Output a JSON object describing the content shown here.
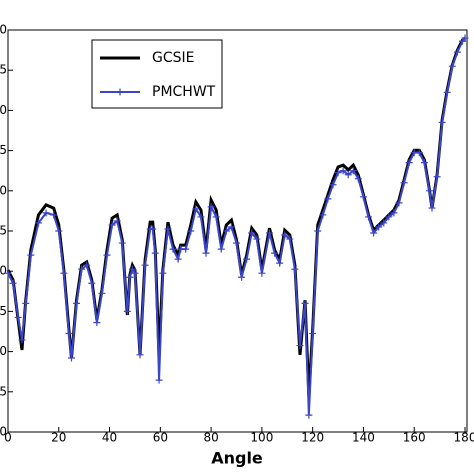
{
  "chart_data": {
    "type": "line",
    "x_label": "Angle",
    "x": [
      0,
      2,
      4,
      5.5,
      7,
      9,
      12,
      15,
      18,
      20,
      22,
      24,
      25,
      27,
      29,
      31,
      33,
      35,
      37,
      39,
      41,
      43,
      45,
      47,
      48,
      49,
      50,
      52,
      54,
      56,
      57,
      58,
      59.5,
      61,
      63,
      65,
      67,
      68,
      70,
      72,
      74,
      76,
      78,
      80,
      82,
      84,
      86,
      88,
      90,
      92,
      94,
      96,
      98,
      100,
      103,
      105,
      107,
      109,
      111,
      113,
      115,
      117,
      118.5,
      120,
      122,
      124,
      126,
      128,
      130,
      132,
      134,
      136,
      138,
      140,
      142,
      144,
      146,
      148,
      150,
      152,
      154,
      156,
      158,
      160,
      162,
      164,
      166,
      167,
      169,
      171,
      173,
      175,
      177,
      179,
      180
    ],
    "series": [
      {
        "name": "GCSIE",
        "color": "#000000",
        "marker": "none",
        "values": [
          4.03,
          3.78,
          2.79,
          2.04,
          3.28,
          4.53,
          5.4,
          5.65,
          5.57,
          5.15,
          4.03,
          2.54,
          1.84,
          3.28,
          4.15,
          4.23,
          3.78,
          2.79,
          3.53,
          4.53,
          5.32,
          5.4,
          4.78,
          2.91,
          3.91,
          4.15,
          4.03,
          1.92,
          4.28,
          5.22,
          5.22,
          4.53,
          1.9,
          4.03,
          5.22,
          4.65,
          4.4,
          4.65,
          4.65,
          5.15,
          5.72,
          5.52,
          4.53,
          5.77,
          5.52,
          4.65,
          5.15,
          5.27,
          4.78,
          3.91,
          4.4,
          5.07,
          4.9,
          4.03,
          5.07,
          4.53,
          4.28,
          5.02,
          4.9,
          4.15,
          1.92,
          3.28,
          0.9,
          2.54,
          5.15,
          5.52,
          5.9,
          6.27,
          6.59,
          6.64,
          6.52,
          6.64,
          6.39,
          5.9,
          5.4,
          5.02,
          5.15,
          5.27,
          5.4,
          5.52,
          5.77,
          6.27,
          6.77,
          7.01,
          7.01,
          6.77,
          6.02,
          5.57,
          6.39,
          7.76,
          8.51,
          9.13,
          9.5,
          9.75,
          9.8
        ]
      },
      {
        "name": "PMCHWT",
        "color": "#3a45c8",
        "marker": "+",
        "values": [
          3.95,
          3.7,
          2.85,
          2.29,
          3.2,
          4.4,
          5.2,
          5.45,
          5.4,
          5.0,
          3.95,
          2.45,
          1.84,
          3.2,
          4.05,
          4.15,
          3.7,
          2.72,
          3.45,
          4.4,
          5.15,
          5.25,
          4.7,
          3.0,
          3.85,
          4.05,
          3.95,
          1.92,
          4.15,
          5.05,
          5.05,
          4.45,
          1.29,
          3.95,
          5.05,
          4.55,
          4.3,
          4.55,
          4.55,
          5.0,
          5.55,
          5.35,
          4.45,
          5.6,
          5.35,
          4.55,
          5.0,
          5.1,
          4.7,
          3.85,
          4.3,
          4.95,
          4.8,
          3.95,
          4.95,
          4.45,
          4.2,
          4.9,
          4.8,
          4.05,
          2.15,
          3.2,
          0.42,
          2.45,
          5.0,
          5.4,
          5.8,
          6.15,
          6.45,
          6.5,
          6.4,
          6.5,
          6.3,
          5.85,
          5.35,
          4.95,
          5.1,
          5.2,
          5.35,
          5.45,
          5.7,
          6.2,
          6.7,
          6.95,
          6.95,
          6.7,
          6.0,
          5.57,
          6.35,
          7.7,
          8.45,
          9.1,
          9.45,
          9.72,
          9.8
        ]
      }
    ],
    "xlim": [
      0,
      180
    ],
    "xticks": [
      0,
      20,
      40,
      60,
      80,
      100,
      120,
      140,
      160,
      180
    ],
    "ylim": [
      0,
      10
    ],
    "yticks": [
      {
        "value": 0,
        "label": "0"
      },
      {
        "value": 1,
        "label": "5"
      },
      {
        "value": 2,
        "label": "0"
      },
      {
        "value": 3,
        "label": "5"
      },
      {
        "value": 4,
        "label": "0"
      },
      {
        "value": 5,
        "label": "5"
      },
      {
        "value": 6,
        "label": "0"
      },
      {
        "value": 7,
        "label": "5"
      },
      {
        "value": 8,
        "label": "0"
      },
      {
        "value": 9,
        "label": "5"
      },
      {
        "value": 10,
        "label": "0"
      }
    ],
    "grid": false,
    "legend": "upper left"
  }
}
